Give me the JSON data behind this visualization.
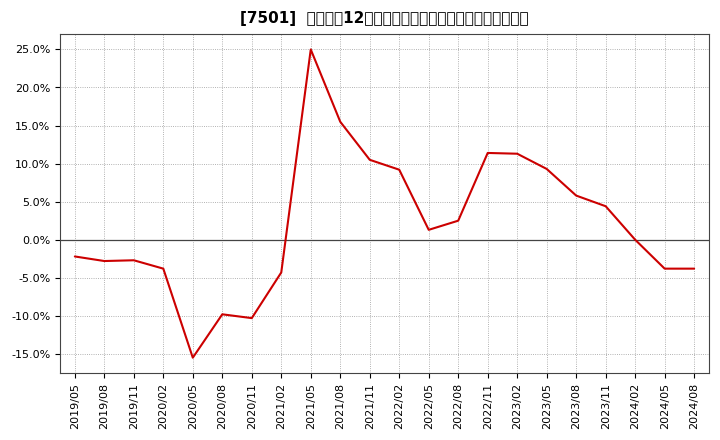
{
  "title": "[7501]  売上高の12か月移動合計の対前年同期増減率の推移",
  "line_color": "#cc0000",
  "background_color": "#ffffff",
  "plot_bg_color": "#ffffff",
  "grid_color": "#999999",
  "zero_line_color": "#444444",
  "spine_color": "#444444",
  "dates": [
    "2019/05",
    "2019/08",
    "2019/11",
    "2020/02",
    "2020/05",
    "2020/08",
    "2020/11",
    "2021/02",
    "2021/05",
    "2021/08",
    "2021/11",
    "2022/02",
    "2022/05",
    "2022/08",
    "2022/11",
    "2023/02",
    "2023/05",
    "2023/08",
    "2023/11",
    "2024/02",
    "2024/05",
    "2024/08"
  ],
  "values": [
    -0.022,
    -0.028,
    -0.027,
    -0.038,
    -0.155,
    -0.098,
    -0.103,
    -0.043,
    0.25,
    0.155,
    0.105,
    0.092,
    0.013,
    0.025,
    0.114,
    0.113,
    0.093,
    0.058,
    0.044,
    0.0,
    -0.038,
    -0.038
  ],
  "yticks": [
    -0.15,
    -0.1,
    -0.05,
    0.0,
    0.05,
    0.1,
    0.15,
    0.2,
    0.25
  ],
  "ylim": [
    -0.175,
    0.27
  ],
  "title_fontsize": 11,
  "tick_fontsize": 8,
  "line_width": 1.5
}
